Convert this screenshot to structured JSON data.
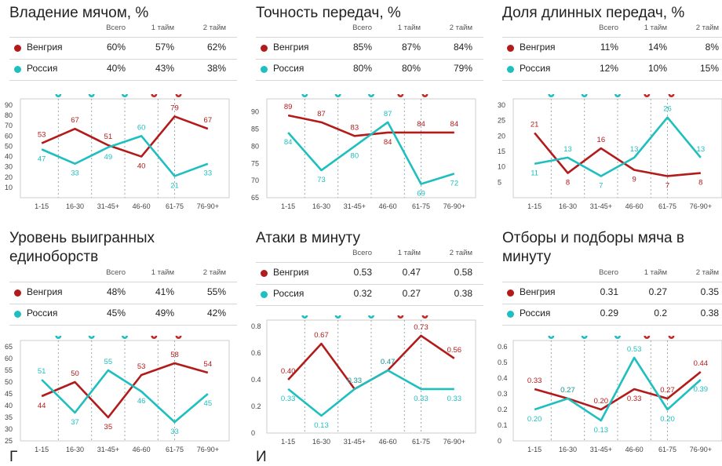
{
  "colors": {
    "hungary": "#b31b1b",
    "russia": "#1fbfbf",
    "ball_icon": "#1fbfbf",
    "card_icon": "#c62828"
  },
  "teams": [
    "Венгрия",
    "Россия"
  ],
  "columns": [
    "Всего",
    "1 тайм",
    "2 тайм"
  ],
  "bottom_fragments": [
    "Г",
    "И"
  ],
  "panels": [
    {
      "title_lines": [
        "Владение мячом, %"
      ],
      "stats": [
        [
          "60%",
          "57%",
          "62%"
        ],
        [
          "40%",
          "43%",
          "38%"
        ]
      ],
      "chart_data": {
        "type": "line",
        "categories": [
          "1-15",
          "16-30",
          "31-45+",
          "46-60",
          "61-75",
          "76-90+"
        ],
        "y_ticks": [
          10,
          20,
          30,
          40,
          50,
          60,
          70,
          80,
          90
        ],
        "ylim": [
          0,
          90
        ],
        "series": [
          {
            "name": "Венгрия",
            "values": [
              53,
              67,
              51,
              40,
              79,
              67
            ]
          },
          {
            "name": "Россия",
            "values": [
              47,
              33,
              49,
              60,
              21,
              33
            ]
          }
        ],
        "events": [
          {
            "x": 0.5,
            "icon": "ball-icon"
          },
          {
            "x": 1.5,
            "icon": "ball-icon"
          },
          {
            "x": 2.5,
            "icon": "ball-icon"
          },
          {
            "x": 3.5,
            "icon": "red-card-icon"
          },
          {
            "x": 4.0,
            "icon": "red-card-icon"
          }
        ]
      }
    },
    {
      "title_lines": [
        "Точность передач, %"
      ],
      "stats": [
        [
          "85%",
          "87%",
          "84%"
        ],
        [
          "80%",
          "80%",
          "79%"
        ]
      ],
      "chart_data": {
        "type": "line",
        "categories": [
          "1-15",
          "16-30",
          "31-45+",
          "46-60",
          "61-75",
          "76-90+"
        ],
        "y_ticks": [
          65,
          70,
          75,
          80,
          85,
          90
        ],
        "ylim": [
          65,
          92
        ],
        "series": [
          {
            "name": "Венгрия",
            "values": [
              89,
              87,
              83,
              84,
              84,
              84
            ]
          },
          {
            "name": "Россия",
            "values": [
              84,
              73,
              80,
              87,
              69,
              72
            ]
          }
        ],
        "events": [
          {
            "x": 0.5,
            "icon": "ball-icon"
          },
          {
            "x": 1.5,
            "icon": "ball-icon"
          },
          {
            "x": 2.5,
            "icon": "ball-icon"
          },
          {
            "x": 3.5,
            "icon": "red-card-icon"
          },
          {
            "x": 4.0,
            "icon": "red-card-icon"
          }
        ]
      }
    },
    {
      "title_lines": [
        "Доля длинных передач, %"
      ],
      "stats": [
        [
          "11%",
          "14%",
          "8%"
        ],
        [
          "12%",
          "10%",
          "15%"
        ]
      ],
      "chart_data": {
        "type": "line",
        "categories": [
          "1-15",
          "16-30",
          "31-45+",
          "46-60",
          "61-75",
          "76-90+"
        ],
        "y_ticks": [
          5,
          10,
          15,
          20,
          25,
          30
        ],
        "ylim": [
          0,
          30
        ],
        "series": [
          {
            "name": "Венгрия",
            "values": [
              21,
              8,
              16,
              9,
              7,
              8
            ]
          },
          {
            "name": "Россия",
            "values": [
              11,
              13,
              7,
              13,
              26,
              13
            ]
          }
        ],
        "events": [
          {
            "x": 0.5,
            "icon": "ball-icon"
          },
          {
            "x": 1.5,
            "icon": "ball-icon"
          },
          {
            "x": 2.5,
            "icon": "ball-icon"
          },
          {
            "x": 3.5,
            "icon": "red-card-icon"
          },
          {
            "x": 4.0,
            "icon": "red-card-icon"
          }
        ]
      }
    },
    {
      "title_lines": [
        "Уровень выигранных",
        "единоборств"
      ],
      "stats": [
        [
          "48%",
          "41%",
          "55%"
        ],
        [
          "45%",
          "49%",
          "42%"
        ]
      ],
      "chart_data": {
        "type": "line",
        "categories": [
          "1-15",
          "16-30",
          "31-45+",
          "46-60",
          "61-75",
          "76-90+"
        ],
        "y_ticks": [
          25,
          30,
          35,
          40,
          45,
          50,
          55,
          60,
          65
        ],
        "ylim": [
          25,
          65
        ],
        "series": [
          {
            "name": "Венгрия",
            "values": [
              44,
              50,
              35,
              53,
              58,
              54
            ]
          },
          {
            "name": "Россия",
            "values": [
              51,
              37,
              55,
              46,
              33,
              45
            ]
          }
        ],
        "events": [
          {
            "x": 0.5,
            "icon": "ball-icon"
          },
          {
            "x": 1.5,
            "icon": "ball-icon"
          },
          {
            "x": 2.5,
            "icon": "ball-icon"
          },
          {
            "x": 3.5,
            "icon": "red-card-icon"
          },
          {
            "x": 4.0,
            "icon": "red-card-icon"
          }
        ]
      }
    },
    {
      "title_lines": [
        "Атаки в минуту"
      ],
      "stats": [
        [
          "0.53",
          "0.47",
          "0.58"
        ],
        [
          "0.32",
          "0.27",
          "0.38"
        ]
      ],
      "chart_data": {
        "type": "line",
        "categories": [
          "1-15",
          "16-30",
          "31-45+",
          "46-60",
          "61-75",
          "76-90+"
        ],
        "y_ticks": [
          0,
          0.2,
          0.4,
          0.6,
          0.8
        ],
        "ylim": [
          0,
          0.8
        ],
        "series": [
          {
            "name": "Венгрия",
            "values": [
              0.4,
              0.67,
              0.33,
              0.47,
              0.73,
              0.56
            ]
          },
          {
            "name": "Россия",
            "values": [
              0.33,
              0.13,
              0.33,
              0.47,
              0.33,
              0.33
            ]
          }
        ],
        "events": [
          {
            "x": 0.5,
            "icon": "ball-icon"
          },
          {
            "x": 1.5,
            "icon": "ball-icon"
          },
          {
            "x": 2.5,
            "icon": "ball-icon"
          },
          {
            "x": 3.5,
            "icon": "red-card-icon"
          },
          {
            "x": 4.0,
            "icon": "red-card-icon"
          }
        ]
      }
    },
    {
      "title_lines": [
        "Отборы и подборы мяча в",
        "минуту"
      ],
      "stats": [
        [
          "0.31",
          "0.27",
          "0.35"
        ],
        [
          "0.29",
          "0.2",
          "0.38"
        ]
      ],
      "chart_data": {
        "type": "line",
        "categories": [
          "1-15",
          "16-30",
          "31-45+",
          "46-60",
          "61-75",
          "76-90+"
        ],
        "y_ticks": [
          0,
          0.1,
          0.2,
          0.3,
          0.4,
          0.5,
          0.6
        ],
        "ylim": [
          0,
          0.6
        ],
        "series": [
          {
            "name": "Венгрия",
            "values": [
              0.33,
              0.27,
              0.2,
              0.33,
              0.27,
              0.44
            ]
          },
          {
            "name": "Россия",
            "values": [
              0.2,
              0.27,
              0.13,
              0.53,
              0.2,
              0.39
            ]
          }
        ],
        "events": [
          {
            "x": 0.5,
            "icon": "ball-icon"
          },
          {
            "x": 1.5,
            "icon": "ball-icon"
          },
          {
            "x": 2.5,
            "icon": "ball-icon"
          },
          {
            "x": 3.5,
            "icon": "red-card-icon"
          },
          {
            "x": 4.0,
            "icon": "red-card-icon"
          }
        ]
      }
    }
  ]
}
